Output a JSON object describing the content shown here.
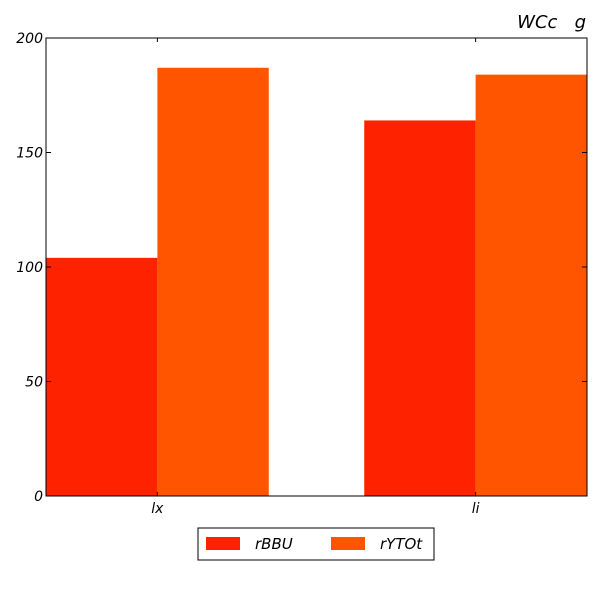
{
  "chart_data": {
    "type": "bar",
    "title": "WCc   g",
    "xlabel": "",
    "ylabel": "",
    "categories": [
      "lx",
      "li"
    ],
    "series": [
      {
        "name": "rBBU",
        "values": [
          104,
          164
        ],
        "color": "#ff2200"
      },
      {
        "name": "rYTOt",
        "values": [
          187,
          184
        ],
        "color": "#ff5500"
      }
    ],
    "ylim": [
      0,
      200
    ],
    "yticks": [
      "0",
      "50",
      "100",
      "150",
      "200"
    ],
    "grid": false,
    "legend_position": "bottom-center"
  }
}
